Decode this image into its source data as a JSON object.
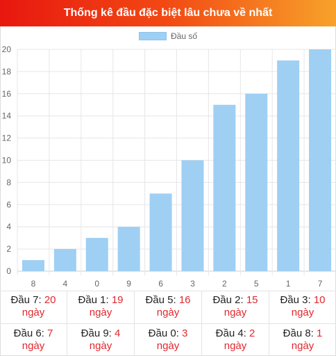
{
  "header": {
    "title": "Thống kê đầu đặc biệt lâu chưa về nhất"
  },
  "legend": {
    "label": "Đầu số"
  },
  "colors": {
    "bar": "#9fcff3",
    "header_start": "#e8170f",
    "header_end": "#f7a22a",
    "value_text": "#e0282e"
  },
  "chart_data": {
    "type": "bar",
    "categories": [
      "8",
      "4",
      "0",
      "9",
      "6",
      "3",
      "2",
      "5",
      "1",
      "7"
    ],
    "series": [
      {
        "name": "Đầu số",
        "values": [
          1,
          2,
          3,
          4,
          7,
          10,
          15,
          16,
          19,
          20
        ]
      }
    ],
    "ylim": [
      0,
      20
    ],
    "yticks": [
      0,
      2,
      4,
      6,
      8,
      10,
      12,
      14,
      16,
      18,
      20
    ],
    "grid": true,
    "legend_position": "top"
  },
  "stats": [
    {
      "label": "Đầu 7:",
      "value": "20",
      "unit": "ngày"
    },
    {
      "label": "Đầu 1:",
      "value": "19",
      "unit": "ngày"
    },
    {
      "label": "Đầu 5:",
      "value": "16",
      "unit": "ngày"
    },
    {
      "label": "Đầu 2:",
      "value": "15",
      "unit": "ngày"
    },
    {
      "label": "Đầu 3:",
      "value": "10",
      "unit": "ngày"
    },
    {
      "label": "Đầu 6:",
      "value": "7",
      "unit": "ngày"
    },
    {
      "label": "Đầu 9:",
      "value": "4",
      "unit": "ngày"
    },
    {
      "label": "Đầu 0:",
      "value": "3",
      "unit": "ngày"
    },
    {
      "label": "Đầu 4:",
      "value": "2",
      "unit": "ngày"
    },
    {
      "label": "Đầu 8:",
      "value": "1",
      "unit": "ngày"
    }
  ]
}
